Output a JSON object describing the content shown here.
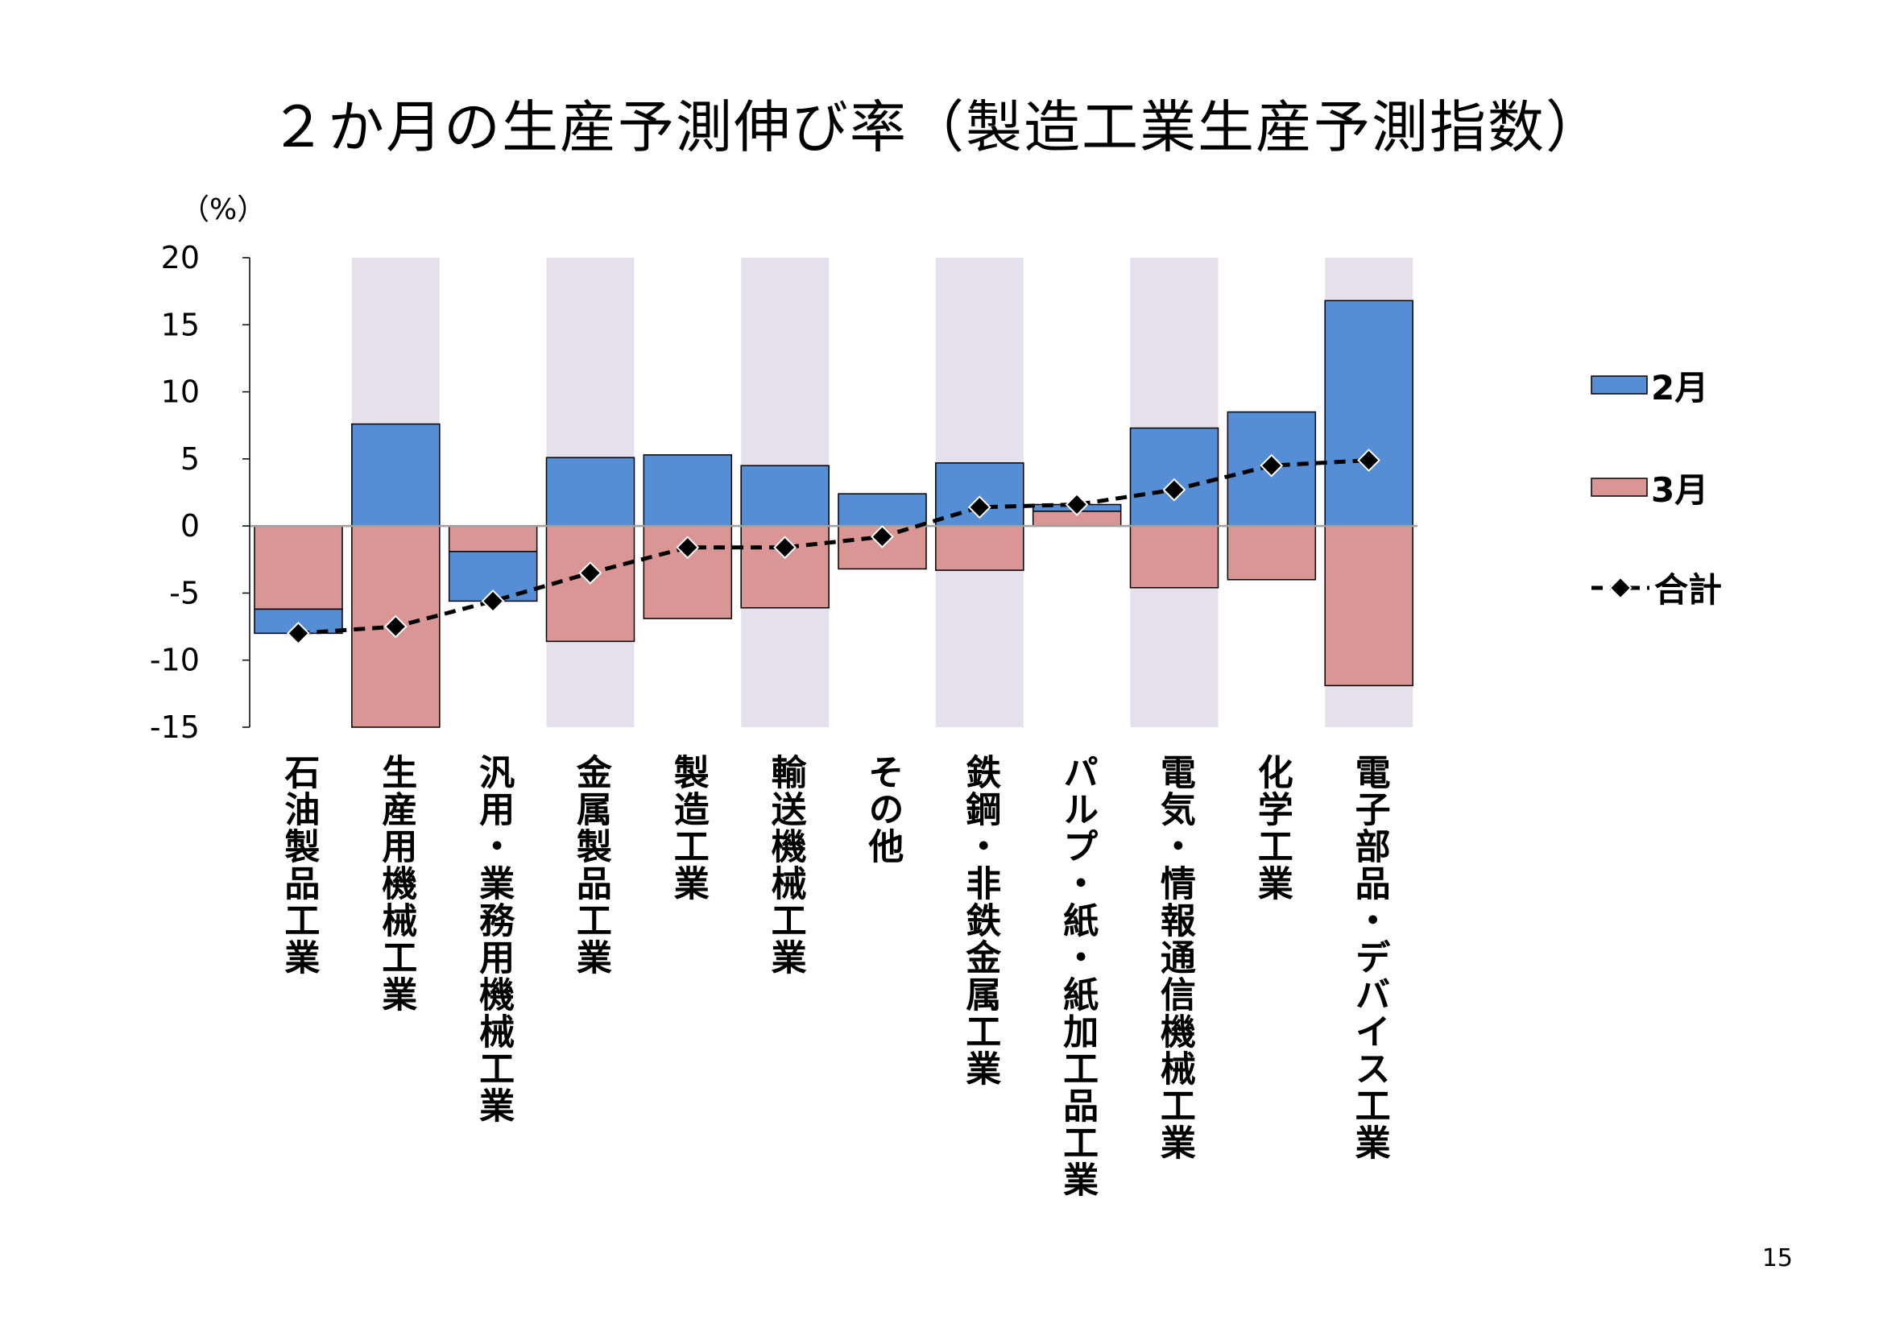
{
  "page": {
    "number": "15"
  },
  "chart_data": {
    "type": "bar",
    "stacked": true,
    "title": "２か月の生産予測伸び率（製造工業生産予測指数）",
    "ylabel": "（%）",
    "xlabel": "",
    "ylim": [
      -15,
      20
    ],
    "yticks": [
      20,
      15,
      10,
      5,
      0,
      -5,
      -10,
      -15
    ],
    "ytick_labels": [
      "20",
      "15",
      "10",
      "5",
      "0",
      "-5",
      "-10",
      "-15"
    ],
    "grid": false,
    "legend": "right",
    "categories": [
      "石油製品工業",
      "生産用機械工業",
      "汎用・業務用機械工業",
      "金属製品工業",
      "製造工業",
      "輸送機械工業",
      "その他",
      "鉄鋼・非鉄金属工業",
      "パルプ・紙・紙加工品工業",
      "電気・情報通信機械工業",
      "化学工業",
      "電子部品・デバイス工業"
    ],
    "shaded_categories": [
      "生産用機械工業",
      "金属製品工業",
      "輸送機械工業",
      "鉄鋼・非鉄金属工業",
      "電気・情報通信機械工業",
      "電子部品・デバイス工業"
    ],
    "band_color": "#E6E0EC",
    "zero_line_color": "#A0A0A0",
    "series": [
      {
        "name": "2月",
        "type": "bar",
        "color": "#558ED5",
        "values": [
          -1.8,
          7.6,
          -3.7,
          5.1,
          5.3,
          4.5,
          2.4,
          4.7,
          0.5,
          7.3,
          8.5,
          16.8
        ]
      },
      {
        "name": "3月",
        "type": "bar",
        "color": "#D99694",
        "values": [
          -6.2,
          -15.1,
          -1.9,
          -8.6,
          -6.9,
          -6.1,
          -3.2,
          -3.3,
          1.1,
          -4.6,
          -4.0,
          -11.9
        ]
      },
      {
        "name": "合計",
        "type": "line",
        "style": "dashed",
        "marker": "diamond",
        "color": "#000000",
        "values": [
          -8.0,
          -7.5,
          -5.6,
          -3.5,
          -1.6,
          -1.6,
          -0.8,
          1.4,
          1.6,
          2.7,
          4.5,
          4.9
        ]
      }
    ]
  }
}
